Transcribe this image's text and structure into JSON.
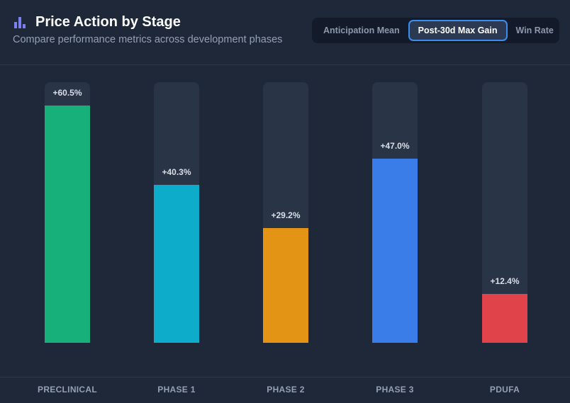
{
  "header": {
    "icon": "bar-chart-icon",
    "title": "Price Action by Stage",
    "subtitle": "Compare performance metrics across development phases"
  },
  "tabs": [
    {
      "label": "Anticipation Mean",
      "active": false
    },
    {
      "label": "Post-30d Max Gain",
      "active": true
    },
    {
      "label": "Win Rate",
      "active": false
    }
  ],
  "colors": {
    "background": "#1e2839",
    "track": "#293547",
    "accent": "#3b8ef0",
    "icon": "#7b7ff2"
  },
  "chart_data": {
    "type": "bar",
    "title": "Price Action by Stage",
    "metric": "Post-30d Max Gain",
    "categories": [
      "PRECLINICAL",
      "PHASE 1",
      "PHASE 2",
      "PHASE 3",
      "PDUFA"
    ],
    "values": [
      60.5,
      40.3,
      29.2,
      47.0,
      12.4
    ],
    "value_labels": [
      "+60.5%",
      "+40.3%",
      "+29.2%",
      "+47.0%",
      "+12.4%"
    ],
    "bar_colors": [
      "#17b07b",
      "#0eaccb",
      "#e49414",
      "#3a7de8",
      "#e0444a"
    ],
    "unit": "%",
    "ylim": [
      0,
      60.5
    ],
    "grid": false,
    "legend": "none"
  }
}
